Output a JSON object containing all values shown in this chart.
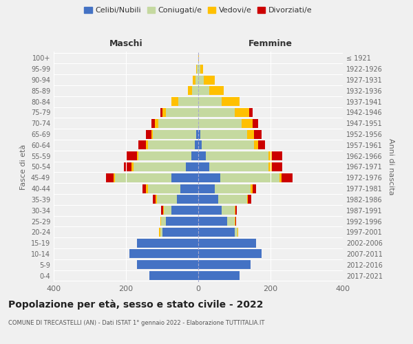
{
  "age_groups": [
    "0-4",
    "5-9",
    "10-14",
    "15-19",
    "20-24",
    "25-29",
    "30-34",
    "35-39",
    "40-44",
    "45-49",
    "50-54",
    "55-59",
    "60-64",
    "65-69",
    "70-74",
    "75-79",
    "80-84",
    "85-89",
    "90-94",
    "95-99",
    "100+"
  ],
  "birth_years": [
    "2017-2021",
    "2012-2016",
    "2007-2011",
    "2002-2006",
    "1997-2001",
    "1992-1996",
    "1987-1991",
    "1982-1986",
    "1977-1981",
    "1972-1976",
    "1967-1971",
    "1962-1966",
    "1957-1961",
    "1952-1956",
    "1947-1951",
    "1942-1946",
    "1937-1941",
    "1932-1936",
    "1927-1931",
    "1922-1926",
    "≤ 1921"
  ],
  "male": {
    "celibi": [
      135,
      170,
      190,
      170,
      100,
      90,
      75,
      60,
      50,
      75,
      35,
      20,
      10,
      5,
      0,
      0,
      0,
      0,
      0,
      0,
      0
    ],
    "coniugati": [
      0,
      0,
      0,
      0,
      5,
      12,
      20,
      55,
      90,
      155,
      145,
      145,
      130,
      120,
      110,
      90,
      55,
      18,
      8,
      3,
      0
    ],
    "vedovi": [
      0,
      0,
      0,
      0,
      3,
      2,
      2,
      3,
      5,
      5,
      5,
      5,
      5,
      5,
      10,
      10,
      20,
      10,
      8,
      2,
      0
    ],
    "divorziati": [
      0,
      0,
      0,
      0,
      0,
      0,
      5,
      8,
      10,
      20,
      20,
      30,
      20,
      15,
      10,
      5,
      0,
      0,
      0,
      0,
      0
    ]
  },
  "female": {
    "nubili": [
      115,
      145,
      175,
      160,
      100,
      80,
      65,
      55,
      45,
      60,
      30,
      20,
      10,
      5,
      0,
      0,
      0,
      0,
      0,
      0,
      0
    ],
    "coniugate": [
      0,
      0,
      0,
      0,
      8,
      20,
      35,
      80,
      100,
      165,
      165,
      175,
      145,
      130,
      120,
      100,
      65,
      30,
      15,
      5,
      0
    ],
    "vedove": [
      0,
      0,
      0,
      0,
      3,
      2,
      2,
      3,
      5,
      5,
      8,
      8,
      10,
      20,
      30,
      40,
      50,
      40,
      30,
      8,
      2
    ],
    "divorziate": [
      0,
      0,
      0,
      0,
      0,
      2,
      5,
      8,
      10,
      30,
      30,
      30,
      20,
      20,
      15,
      10,
      0,
      0,
      0,
      0,
      0
    ]
  },
  "colors": {
    "celibi": "#4472c4",
    "coniugati": "#c5d9a0",
    "vedovi": "#ffc000",
    "divorziati": "#cc0000"
  },
  "xlim": 400,
  "title": "Popolazione per età, sesso e stato civile - 2022",
  "subtitle": "COMUNE DI TRECASTELLI (AN) - Dati ISTAT 1° gennaio 2022 - Elaborazione TUTTITALIA.IT",
  "ylabel_left": "Fasce di età",
  "ylabel_right": "Anni di nascita",
  "xlabel_left": "Maschi",
  "xlabel_right": "Femmine",
  "bg_color": "#f0f0f0",
  "grid_color": "#ffffff"
}
